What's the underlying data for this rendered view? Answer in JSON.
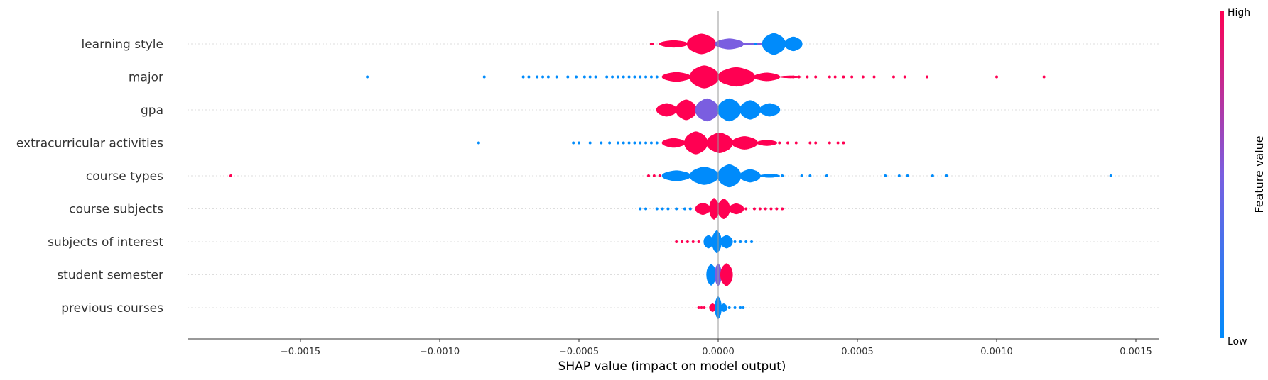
{
  "chart_data": {
    "type": "violin",
    "xlabel": "SHAP value (impact on model output)",
    "xlim": [
      -0.0019,
      0.00157
    ],
    "xticks": [
      "−0.0015",
      "−0.0010",
      "−0.0005",
      "0.0000",
      "0.0005",
      "0.0010",
      "0.0015"
    ],
    "xtick_values": [
      -0.0015,
      -0.001,
      -0.0005,
      0,
      0.0005,
      0.001,
      0.0015
    ],
    "colorbar": {
      "label": "Feature value",
      "high": "High",
      "low": "Low",
      "high_color": "#ff0052",
      "low_color": "#008bfb"
    },
    "features": [
      {
        "name": "learning style",
        "bands": [
          [
            -0.00021,
            -0.00011,
            "high",
            0.3
          ],
          [
            -0.00011,
            -1e-05,
            "high",
            0.85
          ],
          [
            -1e-05,
            9e-05,
            "mix",
            0.45
          ],
          [
            9e-05,
            0.00016,
            "mix",
            0.1
          ],
          [
            0.00016,
            0.00024,
            "low",
            0.9
          ],
          [
            0.00024,
            0.0003,
            "low",
            0.6
          ]
        ],
        "points": [
          [
            -0.00024,
            "high"
          ],
          [
            -0.000235,
            "high"
          ],
          [
            9.5e-05,
            "mix"
          ],
          [
            0.000135,
            "low"
          ]
        ]
      },
      {
        "name": "major",
        "bands": [
          [
            -0.0002,
            -0.0001,
            "high",
            0.4
          ],
          [
            -0.0001,
            0.0,
            "high",
            0.95
          ],
          [
            0.0,
            0.00013,
            "high",
            0.8
          ],
          [
            0.00013,
            0.00022,
            "high",
            0.35
          ],
          [
            0.00022,
            0.0003,
            "high",
            0.1
          ]
        ],
        "points": [
          [
            -0.00126,
            "low"
          ],
          [
            -0.00084,
            "low"
          ],
          [
            -0.0007,
            "low"
          ],
          [
            -0.00068,
            "low"
          ],
          [
            -0.00065,
            "low"
          ],
          [
            -0.00063,
            "low"
          ],
          [
            -0.00061,
            "low"
          ],
          [
            -0.00058,
            "low"
          ],
          [
            -0.00054,
            "low"
          ],
          [
            -0.00051,
            "low"
          ],
          [
            -0.00048,
            "low"
          ],
          [
            -0.00046,
            "low"
          ],
          [
            -0.00044,
            "low"
          ],
          [
            -0.0004,
            "low"
          ],
          [
            -0.00038,
            "low"
          ],
          [
            -0.00036,
            "low"
          ],
          [
            -0.00034,
            "low"
          ],
          [
            -0.00032,
            "low"
          ],
          [
            -0.0003,
            "low"
          ],
          [
            -0.00028,
            "low"
          ],
          [
            -0.00026,
            "low"
          ],
          [
            -0.00024,
            "low"
          ],
          [
            -0.00022,
            "low"
          ],
          [
            0.00027,
            "high"
          ],
          [
            0.00029,
            "high"
          ],
          [
            0.00032,
            "high"
          ],
          [
            0.00035,
            "high"
          ],
          [
            0.0004,
            "high"
          ],
          [
            0.00042,
            "high"
          ],
          [
            0.00045,
            "high"
          ],
          [
            0.00048,
            "high"
          ],
          [
            0.00052,
            "high"
          ],
          [
            0.00056,
            "high"
          ],
          [
            0.00063,
            "high"
          ],
          [
            0.00067,
            "high"
          ],
          [
            0.00075,
            "high"
          ],
          [
            0.001,
            "high"
          ],
          [
            0.00117,
            "high"
          ]
        ]
      },
      {
        "name": "gpa",
        "bands": [
          [
            -0.00022,
            -0.00015,
            "high",
            0.55
          ],
          [
            -0.00015,
            -8e-05,
            "high",
            0.85
          ],
          [
            -8e-05,
            0.0,
            "mix",
            0.95
          ],
          [
            0.0,
            8e-05,
            "low",
            0.95
          ],
          [
            8e-05,
            0.00015,
            "low",
            0.8
          ],
          [
            0.00015,
            0.00022,
            "low",
            0.55
          ]
        ],
        "points": []
      },
      {
        "name": "extracurricular activities",
        "bands": [
          [
            -0.0002,
            -0.00012,
            "high",
            0.4
          ],
          [
            -0.00012,
            -4e-05,
            "high",
            0.95
          ],
          [
            -4e-05,
            5e-05,
            "high",
            0.85
          ],
          [
            5e-05,
            0.00014,
            "high",
            0.55
          ],
          [
            0.00014,
            0.00021,
            "high",
            0.25
          ]
        ],
        "points": [
          [
            -0.00086,
            "low"
          ],
          [
            -0.00052,
            "low"
          ],
          [
            -0.0005,
            "low"
          ],
          [
            -0.00046,
            "low"
          ],
          [
            -0.00042,
            "low"
          ],
          [
            -0.00039,
            "low"
          ],
          [
            -0.00036,
            "low"
          ],
          [
            -0.00034,
            "low"
          ],
          [
            -0.00032,
            "low"
          ],
          [
            -0.0003,
            "low"
          ],
          [
            -0.00028,
            "low"
          ],
          [
            -0.00026,
            "low"
          ],
          [
            -0.00024,
            "low"
          ],
          [
            -0.00022,
            "low"
          ],
          [
            0.00022,
            "high"
          ],
          [
            0.00025,
            "high"
          ],
          [
            0.00028,
            "high"
          ],
          [
            0.00033,
            "high"
          ],
          [
            0.00035,
            "high"
          ],
          [
            0.0004,
            "high"
          ],
          [
            0.00043,
            "high"
          ],
          [
            0.00045,
            "high"
          ]
        ]
      },
      {
        "name": "course types",
        "bands": [
          [
            -0.0002,
            -0.0001,
            "low",
            0.45
          ],
          [
            -0.0001,
            0.0,
            "low",
            0.75
          ],
          [
            0.0,
            8e-05,
            "low",
            0.95
          ],
          [
            8e-05,
            0.00015,
            "low",
            0.55
          ],
          [
            0.00015,
            0.00022,
            "low",
            0.15
          ]
        ],
        "points": [
          [
            -0.00175,
            "high"
          ],
          [
            -0.00025,
            "high"
          ],
          [
            -0.00023,
            "high"
          ],
          [
            -0.00021,
            "high"
          ],
          [
            0.00021,
            "low"
          ],
          [
            0.00023,
            "low"
          ],
          [
            0.0003,
            "low"
          ],
          [
            0.00033,
            "low"
          ],
          [
            0.00039,
            "low"
          ],
          [
            0.0006,
            "low"
          ],
          [
            0.00065,
            "low"
          ],
          [
            0.00068,
            "low"
          ],
          [
            0.00077,
            "low"
          ],
          [
            0.00082,
            "low"
          ],
          [
            0.00141,
            "low"
          ]
        ]
      },
      {
        "name": "course subjects",
        "bands": [
          [
            -8e-05,
            -3e-05,
            "high",
            0.5
          ],
          [
            -3e-05,
            0.0,
            "high",
            0.9
          ],
          [
            0.0,
            4e-05,
            "high",
            0.85
          ],
          [
            4e-05,
            9e-05,
            "high",
            0.45
          ]
        ],
        "points": [
          [
            -0.00028,
            "low"
          ],
          [
            -0.00026,
            "low"
          ],
          [
            -0.00022,
            "low"
          ],
          [
            -0.0002,
            "low"
          ],
          [
            -0.00018,
            "low"
          ],
          [
            -0.00015,
            "low"
          ],
          [
            -0.00012,
            "low"
          ],
          [
            -0.0001,
            "low"
          ],
          [
            0.0001,
            "high"
          ],
          [
            0.00013,
            "high"
          ],
          [
            0.00015,
            "high"
          ],
          [
            0.00017,
            "high"
          ],
          [
            0.00019,
            "high"
          ],
          [
            0.00021,
            "high"
          ],
          [
            0.00023,
            "high"
          ]
        ]
      },
      {
        "name": "subjects of interest",
        "bands": [
          [
            -5e-05,
            -2e-05,
            "low",
            0.55
          ],
          [
            -2e-05,
            1e-05,
            "low",
            0.95
          ],
          [
            1e-05,
            5e-05,
            "low",
            0.55
          ]
        ],
        "points": [
          [
            -0.00015,
            "high"
          ],
          [
            -0.00013,
            "high"
          ],
          [
            -0.00011,
            "high"
          ],
          [
            -9e-05,
            "high"
          ],
          [
            -7e-05,
            "high"
          ],
          [
            6e-05,
            "low"
          ],
          [
            8e-05,
            "low"
          ],
          [
            0.0001,
            "low"
          ],
          [
            0.00012,
            "low"
          ]
        ]
      },
      {
        "name": "student semester",
        "bands": [
          [
            -4e-05,
            -1e-05,
            "low",
            0.9
          ],
          [
            -1e-05,
            1e-05,
            "mix",
            0.95
          ],
          [
            1e-05,
            5e-05,
            "high",
            0.95
          ]
        ],
        "points": []
      },
      {
        "name": "previous courses",
        "bands": [
          [
            -3e-05,
            -1e-05,
            "high",
            0.35
          ],
          [
            -1e-05,
            1e-05,
            "low",
            0.95
          ],
          [
            1e-05,
            3e-05,
            "low",
            0.35
          ]
        ],
        "points": [
          [
            -7e-05,
            "high"
          ],
          [
            -6e-05,
            "high"
          ],
          [
            -5e-05,
            "high"
          ],
          [
            4e-05,
            "low"
          ],
          [
            6e-05,
            "low"
          ],
          [
            8e-05,
            "low"
          ],
          [
            9e-05,
            "low"
          ]
        ]
      }
    ]
  }
}
